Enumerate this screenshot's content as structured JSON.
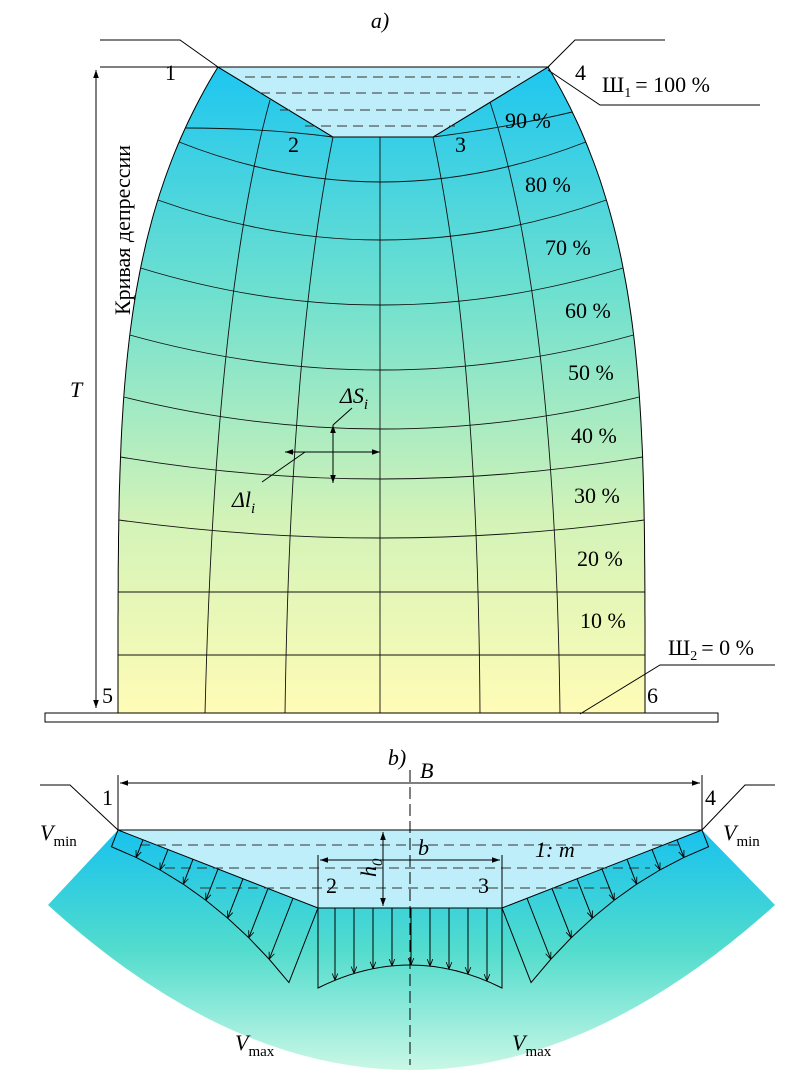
{
  "panel_a": {
    "label": "a)",
    "points": [
      "1",
      "2",
      "3",
      "4",
      "5",
      "6"
    ],
    "depth_label": "T",
    "curve_label": "Кривая депрессии",
    "top_level": {
      "symbol": "Ш",
      "sub": "1",
      "text": "= 100 %"
    },
    "levels": [
      "90 %",
      "80 %",
      "70 %",
      "60 %",
      "50 %",
      "40 %",
      "30 %",
      "20 %",
      "10 %"
    ],
    "bottom_level": {
      "symbol": "Ш",
      "sub": "2",
      "text": "= 0 %"
    },
    "delta_s": {
      "symbol": "ΔS",
      "sub": "i"
    },
    "delta_l": {
      "symbol": "Δl",
      "sub": "i"
    }
  },
  "panel_b": {
    "label": "b)",
    "points": [
      "1",
      "2",
      "3",
      "4"
    ],
    "width": "B",
    "depth": {
      "symbol": "h",
      "sub": "0"
    },
    "bottom_width": "b",
    "slope": "1: m",
    "v_min": {
      "symbol": "V",
      "sub": "min"
    },
    "v_max": {
      "symbol": "V",
      "sub": "max"
    }
  }
}
